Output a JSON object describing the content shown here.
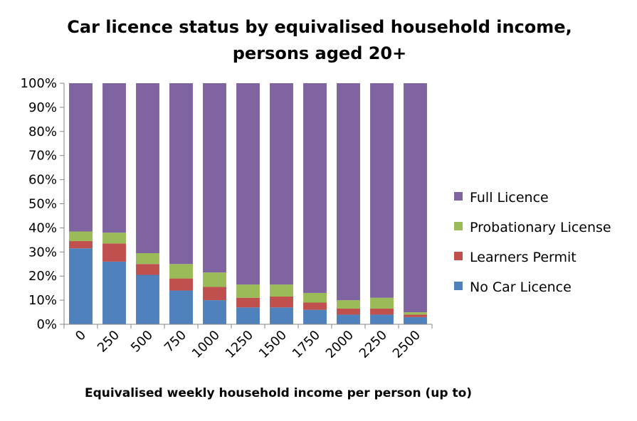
{
  "chart_data": {
    "type": "bar",
    "stacked": true,
    "title_lines": [
      "Car licence status by equivalised household income,",
      "persons aged 20+"
    ],
    "xlabel": "Equivalised weekly household income per person (up to)",
    "ylabel": "",
    "ylim": [
      0,
      100
    ],
    "y_ticks": [
      "0%",
      "10%",
      "20%",
      "30%",
      "40%",
      "50%",
      "60%",
      "70%",
      "80%",
      "90%",
      "100%"
    ],
    "categories": [
      "0",
      "250",
      "500",
      "750",
      "1000",
      "1250",
      "1500",
      "1750",
      "2000",
      "2250",
      "2500"
    ],
    "grid": false,
    "legend_position": "right",
    "series": [
      {
        "name": "No Car Licence",
        "color": "#4F81BD",
        "values": [
          31.5,
          26,
          20.5,
          14,
          10,
          7,
          7,
          6,
          4,
          4,
          3
        ]
      },
      {
        "name": "Learners Permit",
        "color": "#C0504D",
        "values": [
          3,
          7.5,
          4.5,
          5,
          5.5,
          4,
          4.5,
          3,
          2.5,
          2.5,
          1
        ]
      },
      {
        "name": "Probationary License",
        "color": "#9BBB59",
        "values": [
          4,
          4.5,
          4.5,
          6,
          6,
          5.5,
          5,
          4,
          3.5,
          4.5,
          1
        ]
      },
      {
        "name": "Full Licence",
        "color": "#8064A2",
        "values": [
          61.5,
          62,
          70.5,
          75,
          78.5,
          83.5,
          83.5,
          87,
          90,
          89,
          95
        ]
      }
    ]
  }
}
